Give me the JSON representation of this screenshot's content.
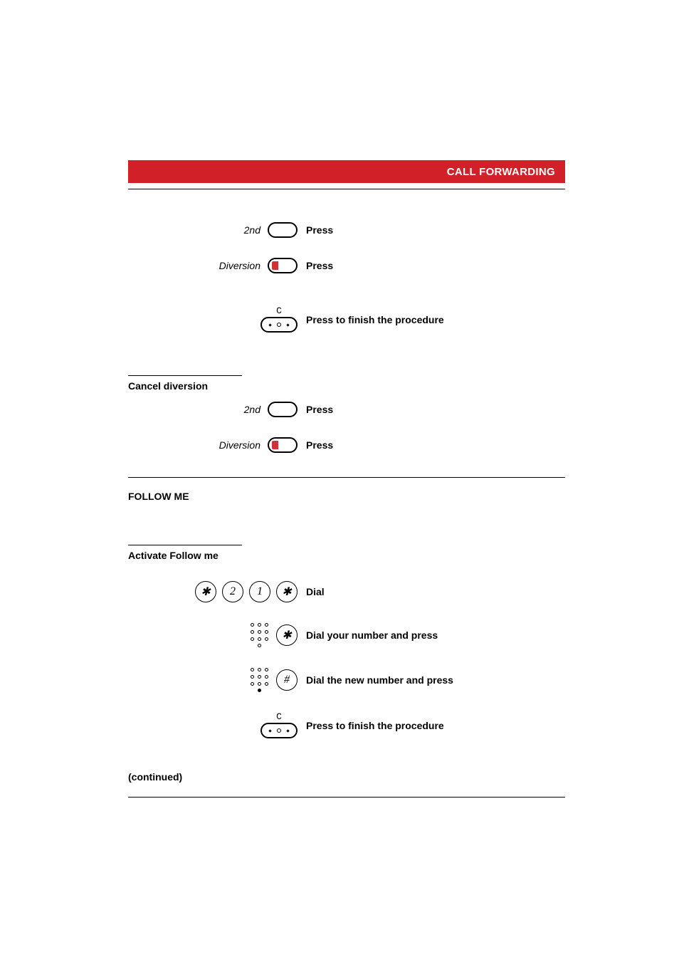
{
  "header": {
    "title": "CALL FORWARDING",
    "bg_color": "#d12027",
    "text_color": "#ffffff"
  },
  "steps": {
    "s1": {
      "label": "2nd",
      "action": "Press"
    },
    "s2": {
      "label": "Diversion",
      "action": "Press"
    },
    "s3": {
      "action": "Press to finish the procedure"
    }
  },
  "cancel": {
    "heading": "Cancel diversion",
    "s1": {
      "label": "2nd",
      "action": "Press"
    },
    "s2": {
      "label": "Diversion",
      "action": "Press"
    }
  },
  "follow": {
    "section_title": "FOLLOW ME",
    "activate_heading": "Activate Follow me",
    "dial": {
      "seq": [
        "✱",
        "2",
        "1",
        "✱"
      ],
      "action": "Dial"
    },
    "your": {
      "suffix": "✱",
      "action": "Dial your number and press"
    },
    "new": {
      "suffix": "#",
      "action": "Dial the new number and press"
    },
    "finish": {
      "action": "Press to finish the procedure"
    }
  },
  "continued": "(continued)",
  "colors": {
    "rule": "#000000",
    "red_key": "#cf3333",
    "text": "#000000",
    "bg": "#ffffff"
  },
  "fonts": {
    "body_size": 14,
    "header_size": 15,
    "circ_size": 16
  }
}
